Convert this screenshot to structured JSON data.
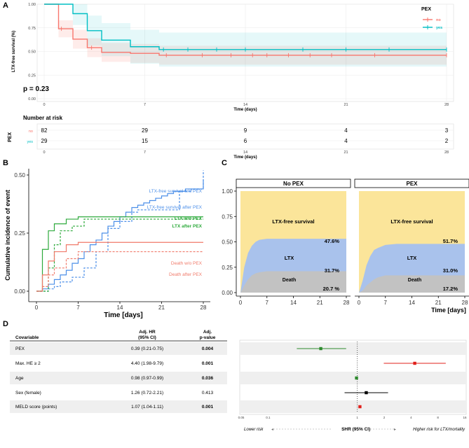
{
  "panels": {
    "a": "A",
    "b": "B",
    "c": "C",
    "d": "D"
  },
  "chart_data": [
    {
      "type": "line",
      "panel": "A",
      "title": "",
      "xlabel": "Time (days)",
      "ylabel": "LTX-free survival (%)",
      "x_ticks": [
        0,
        7,
        14,
        21,
        28
      ],
      "y_ticks": [
        "0.00",
        "0.25",
        "0.50",
        "0.75",
        "1.00"
      ],
      "xlim": [
        0,
        28
      ],
      "ylim": [
        0,
        1
      ],
      "grid": true,
      "legend_title": "PEX",
      "legend_position": "top-right",
      "annotation": "p = 0.23",
      "series": [
        {
          "name": "no",
          "color": "#F8766D",
          "x": [
            0,
            1,
            2,
            3,
            4,
            6,
            8,
            28
          ],
          "y": [
            1.0,
            0.74,
            0.63,
            0.54,
            0.49,
            0.48,
            0.46,
            0.46
          ],
          "ci_low": [
            1.0,
            0.65,
            0.53,
            0.44,
            0.39,
            0.38,
            0.36,
            0.36
          ],
          "ci_high": [
            1.0,
            0.83,
            0.73,
            0.64,
            0.59,
            0.58,
            0.56,
            0.56
          ],
          "censor_x": [
            1.2,
            3.3,
            8.5,
            11,
            13,
            14.5,
            15.5,
            17,
            18.5,
            20,
            23,
            28
          ]
        },
        {
          "name": "yes",
          "color": "#00BFC4",
          "x": [
            0,
            2,
            3,
            4,
            6,
            8,
            28
          ],
          "y": [
            1.0,
            0.9,
            0.72,
            0.62,
            0.55,
            0.52,
            0.52
          ],
          "ci_low": [
            1.0,
            0.78,
            0.56,
            0.45,
            0.37,
            0.34,
            0.34
          ],
          "ci_high": [
            1.0,
            1.0,
            0.88,
            0.8,
            0.73,
            0.7,
            0.7
          ],
          "censor_x": [
            8.3,
            10,
            12,
            14,
            18,
            21,
            24,
            28
          ]
        }
      ]
    },
    {
      "type": "table",
      "panel": "A-risk",
      "title": "Number at risk",
      "ylabel": "PEX",
      "xlabel": "Time (days)",
      "x_ticks": [
        0,
        7,
        14,
        21,
        28
      ],
      "rows": [
        {
          "name": "no",
          "color": "#F8766D",
          "values": [
            82,
            29,
            9,
            4,
            3
          ]
        },
        {
          "name": "yes",
          "color": "#00BFC4",
          "values": [
            29,
            15,
            6,
            4,
            2
          ]
        }
      ]
    },
    {
      "type": "line",
      "panel": "B",
      "xlabel": "Time [days]",
      "ylabel": "Cumulative incidence of event",
      "x_ticks": [
        0,
        7,
        14,
        21,
        28
      ],
      "y_ticks": [
        "0.00",
        "0.25",
        "0.50"
      ],
      "xlim": [
        0,
        28
      ],
      "ylim": [
        0,
        0.5
      ],
      "series": [
        {
          "name": "LTX-free survival w/o PEX",
          "color": "#4C8FE8",
          "dash": false,
          "x": [
            0,
            1,
            2,
            3,
            4,
            5,
            6,
            7,
            8,
            9,
            10,
            11,
            12,
            13,
            14,
            15,
            16,
            17,
            18,
            19,
            20,
            21,
            22,
            23,
            24,
            25,
            26,
            27,
            28
          ],
          "y": [
            0,
            0.01,
            0.03,
            0.05,
            0.07,
            0.09,
            0.12,
            0.14,
            0.17,
            0.2,
            0.22,
            0.25,
            0.28,
            0.3,
            0.32,
            0.34,
            0.36,
            0.37,
            0.38,
            0.39,
            0.4,
            0.41,
            0.42,
            0.43,
            0.43,
            0.44,
            0.44,
            0.44,
            0.48
          ]
        },
        {
          "name": "LTX-free survival after PEX",
          "color": "#4C8FE8",
          "dash": true,
          "x": [
            0,
            2,
            3,
            4,
            6,
            8,
            10,
            12,
            14,
            16,
            17,
            20,
            22,
            24,
            26,
            28
          ],
          "y": [
            0,
            0.01,
            0.02,
            0.04,
            0.06,
            0.1,
            0.17,
            0.27,
            0.3,
            0.34,
            0.35,
            0.35,
            0.35,
            0.43,
            0.44,
            0.52
          ]
        },
        {
          "name": "LTX w/o PEX",
          "color": "#2EAA3C",
          "dash": false,
          "x": [
            0,
            1,
            2,
            3,
            5,
            7,
            28
          ],
          "y": [
            0,
            0.18,
            0.26,
            0.29,
            0.31,
            0.32,
            0.32
          ]
        },
        {
          "name": "LTX after PEX",
          "color": "#2EAA3C",
          "dash": true,
          "x": [
            0,
            2,
            3,
            4,
            6,
            8,
            28
          ],
          "y": [
            0,
            0.1,
            0.2,
            0.26,
            0.28,
            0.31,
            0.31
          ]
        },
        {
          "name": "Death w/o PEX",
          "color": "#F07A6A",
          "dash": false,
          "x": [
            0,
            1,
            2,
            3,
            5,
            7,
            28
          ],
          "y": [
            0,
            0.07,
            0.13,
            0.17,
            0.2,
            0.21,
            0.21
          ]
        },
        {
          "name": "Death after PEX",
          "color": "#F07A6A",
          "dash": true,
          "x": [
            0,
            1,
            2,
            3,
            5,
            7,
            28
          ],
          "y": [
            0,
            0.02,
            0.07,
            0.1,
            0.14,
            0.17,
            0.17
          ]
        }
      ]
    },
    {
      "type": "area",
      "panel": "C",
      "xlabel": "Time [days]",
      "x_ticks": [
        0,
        7,
        14,
        21,
        28
      ],
      "y_ticks": [
        "0.00",
        "0.25",
        "0.50",
        "0.75",
        "1.00"
      ],
      "xlim": [
        0,
        28
      ],
      "ylim": [
        0,
        1
      ],
      "colors": {
        "ltx_free": "#FBE59A",
        "ltx": "#A9C2EC",
        "death": "#C2C2C2"
      },
      "facets": [
        {
          "title": "No PEX",
          "x": [
            0,
            1,
            2,
            3,
            4,
            5,
            7,
            10,
            14,
            28
          ],
          "death_top": [
            0,
            0.07,
            0.13,
            0.17,
            0.19,
            0.2,
            0.21,
            0.21,
            0.21,
            0.21
          ],
          "ltx_top": [
            0,
            0.25,
            0.39,
            0.46,
            0.5,
            0.52,
            0.53,
            0.53,
            0.53,
            0.53
          ],
          "labels": {
            "ltx_free": "LTX-free survival",
            "ltx_free_pct": "47.6%",
            "ltx": "LTX",
            "ltx_pct": "31.7%",
            "death": "Death",
            "death_pct": "20.7 %"
          }
        },
        {
          "title": "PEX",
          "x": [
            0,
            1,
            2,
            3,
            4,
            5,
            7,
            10,
            14,
            28
          ],
          "death_top": [
            0,
            0.02,
            0.07,
            0.1,
            0.13,
            0.15,
            0.17,
            0.17,
            0.17,
            0.17
          ],
          "ltx_top": [
            0,
            0.12,
            0.27,
            0.36,
            0.42,
            0.44,
            0.47,
            0.48,
            0.48,
            0.48
          ],
          "labels": {
            "ltx_free": "LTX-free survival",
            "ltx_free_pct": "51.7%",
            "ltx": "LTX",
            "ltx_pct": "31.0%",
            "death": "Death",
            "death_pct": "17.2%"
          }
        }
      ]
    },
    {
      "type": "scatter",
      "panel": "D",
      "headers": {
        "covariable": "Covariable",
        "hr": "Adj. HR\n(95% CI)",
        "p": "Adj.\np-value"
      },
      "xlabel": "SHR (95% CI)",
      "x_ticks": [
        "0.05",
        "0.1",
        "1",
        "2",
        "4",
        "8",
        "16"
      ],
      "x_log_scale": true,
      "reference_line": 1,
      "lower_label": "Lower risk",
      "higher_label": "Higher risk for LTX/mortality",
      "rows": [
        {
          "label": "PEX",
          "hr_text": "0.39 (0.21-0.75)",
          "p": "0.004",
          "bold": true,
          "est": 0.39,
          "lo": 0.21,
          "hi": 0.75,
          "color": "#2E8B2E"
        },
        {
          "label": "Max. HE ≥ 2",
          "hr_text": "4.40 (1.98-9.79)",
          "p": "0.001",
          "bold": true,
          "est": 4.4,
          "lo": 1.98,
          "hi": 9.79,
          "color": "#E0201B"
        },
        {
          "label": "Age",
          "hr_text": "0.98 (0.97-0.99)",
          "p": "0.036",
          "bold": true,
          "est": 0.98,
          "lo": 0.97,
          "hi": 0.99,
          "color": "#2E8B2E"
        },
        {
          "label": "Sex (female)",
          "hr_text": "1.26 (0.72-2.21)",
          "p": "0.413",
          "bold": false,
          "est": 1.26,
          "lo": 0.72,
          "hi": 2.21,
          "color": "#000000"
        },
        {
          "label": "MELD score (points)",
          "hr_text": "1.07 (1.04-1.11)",
          "p": "0.001",
          "bold": true,
          "est": 1.07,
          "lo": 1.04,
          "hi": 1.11,
          "color": "#E0201B"
        }
      ]
    }
  ]
}
